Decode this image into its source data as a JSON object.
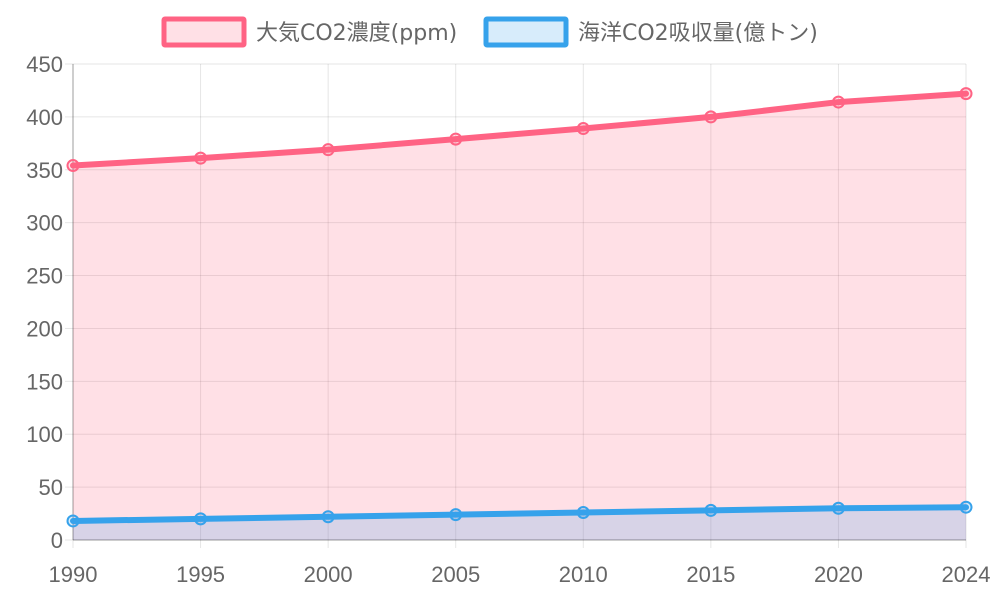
{
  "chart_data": {
    "type": "line",
    "x": [
      "1990",
      "1995",
      "2000",
      "2005",
      "2010",
      "2015",
      "2020",
      "2024"
    ],
    "series": [
      {
        "name": "大気CO2濃度(ppm)",
        "values": [
          354,
          361,
          369,
          379,
          389,
          400,
          414,
          422
        ],
        "color": "#ff6384",
        "fill": "rgba(255,99,132,0.2)"
      },
      {
        "name": "海洋CO2吸収量(億トン)",
        "values": [
          18,
          20,
          22,
          24,
          26,
          28,
          30,
          31
        ],
        "color": "#36a2eb",
        "fill": "rgba(54,162,235,0.2)"
      }
    ],
    "ylim": [
      0,
      450
    ],
    "yticks": [
      "0",
      "50",
      "100",
      "150",
      "200",
      "250",
      "300",
      "350",
      "400",
      "450"
    ],
    "grid": true,
    "area_fill": true,
    "legend_position": "top"
  }
}
